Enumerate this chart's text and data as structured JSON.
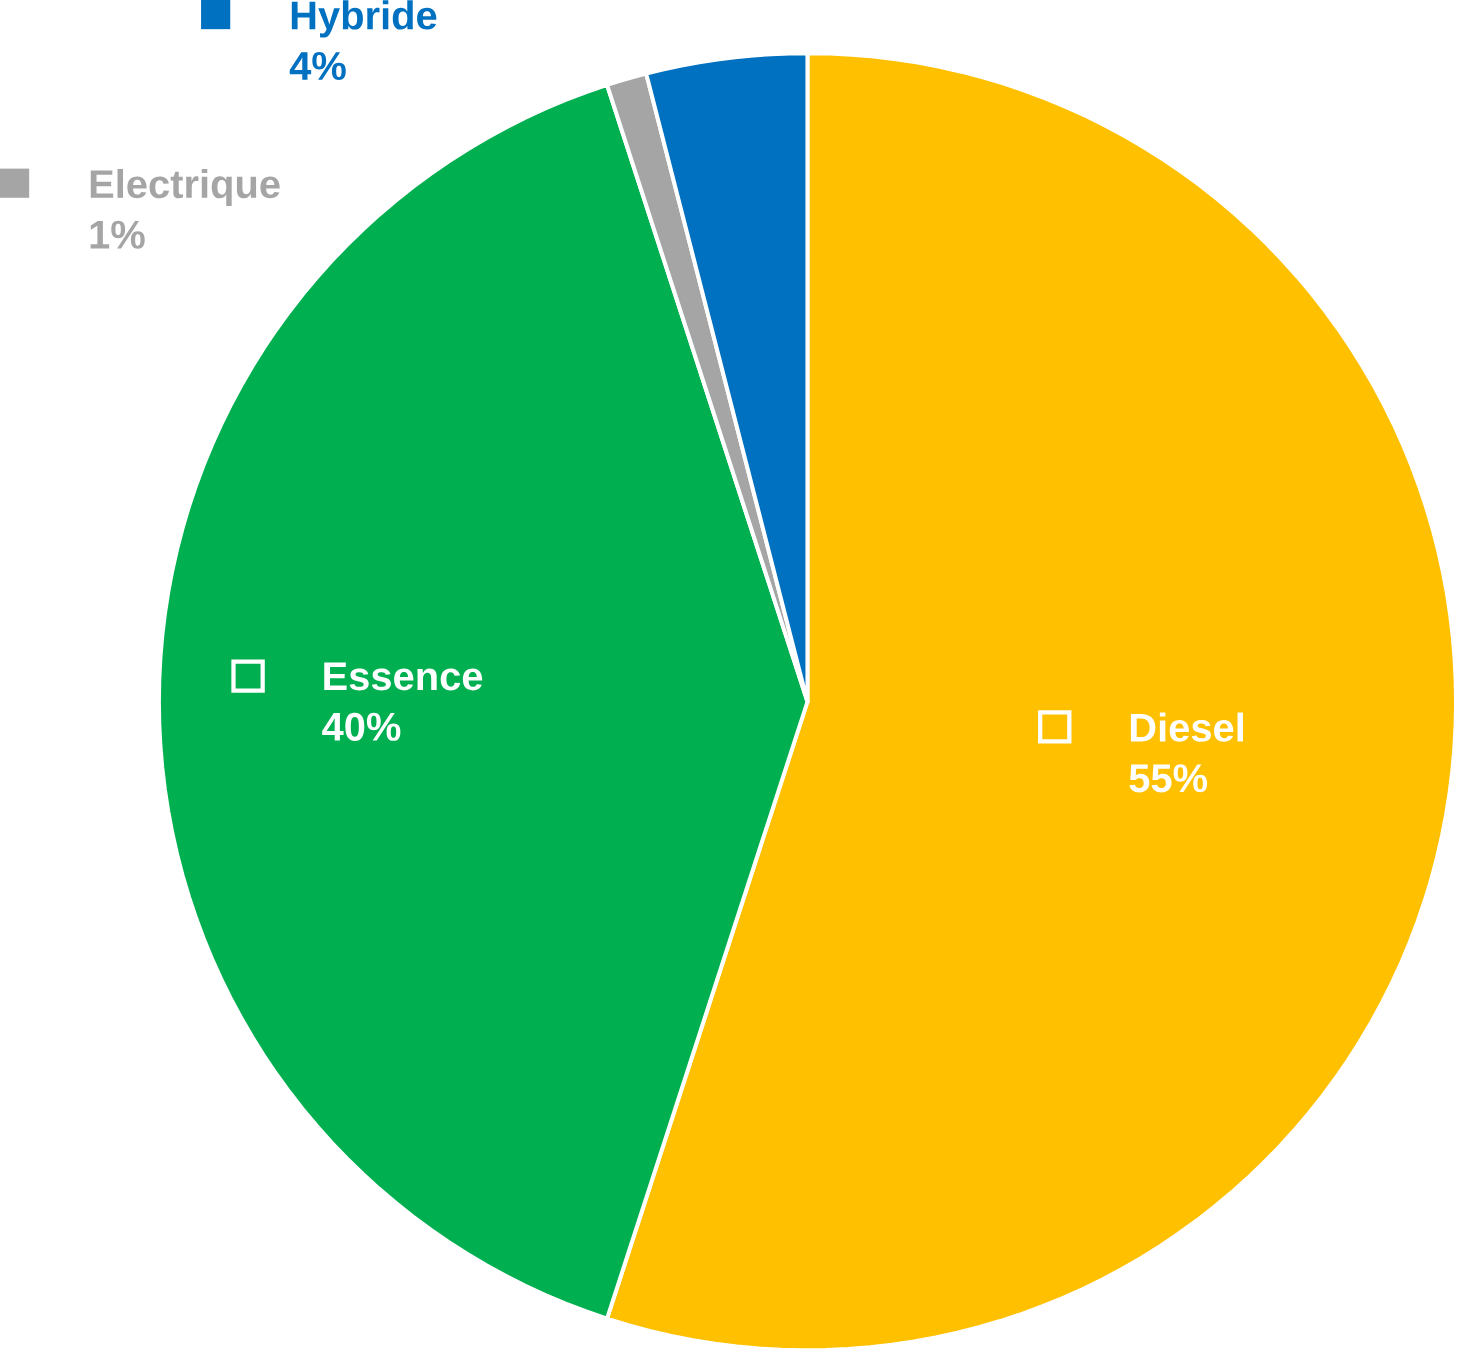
{
  "chart_data": {
    "type": "pie",
    "categories": [
      "Diesel",
      "Essence",
      "Electrique",
      "Hybride"
    ],
    "values": [
      55,
      40,
      1,
      4
    ],
    "colors": [
      "#ffc000",
      "#00b050",
      "#a5a5a5",
      "#0070c0"
    ],
    "value_labels": [
      "55%",
      "40%",
      "1%",
      "4%"
    ],
    "legend": "top left"
  }
}
